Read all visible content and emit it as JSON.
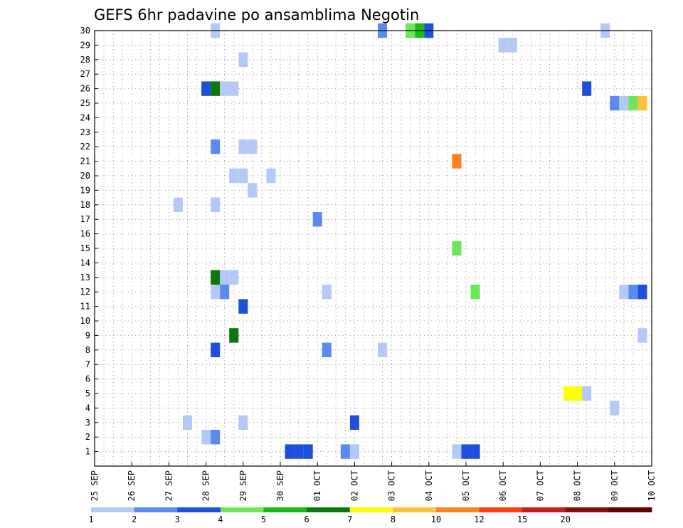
{
  "chart_data": {
    "type": "heatmap",
    "title": "GEFS 6hr padavine po ansamblima Negotin",
    "xlabel": "",
    "ylabel": "",
    "x_ticks": [
      "25 SEP",
      "26 SEP",
      "27 SEP",
      "28 SEP",
      "29 SEP",
      "30 SEP",
      "01 OCT",
      "02 OCT",
      "03 OCT",
      "04 OCT",
      "05 OCT",
      "06 OCT",
      "07 OCT",
      "08 OCT",
      "09 OCT",
      "10 OCT"
    ],
    "x_range_days": [
      0,
      15
    ],
    "y_ticks": [
      1,
      2,
      3,
      4,
      5,
      6,
      7,
      8,
      9,
      10,
      11,
      12,
      13,
      14,
      15,
      16,
      17,
      18,
      19,
      20,
      21,
      22,
      23,
      24,
      25,
      26,
      27,
      28,
      29,
      30
    ],
    "y_range": [
      0,
      30
    ],
    "grid": true,
    "colorbar": {
      "labels": [
        "1",
        "2",
        "3",
        "4",
        "5",
        "6",
        "7",
        "8",
        "10",
        "12",
        "15",
        "20"
      ],
      "colors": [
        "#b4c8f8",
        "#5a8af0",
        "#1e50dc",
        "#6ee65a",
        "#14be14",
        "#0a780a",
        "#ffff00",
        "#ffc03c",
        "#ff7f1e",
        "#ff3c14",
        "#c81e1e",
        "#8b0d0d",
        "#640000"
      ]
    },
    "cells_note": "t = valid time in days from 25 SEP 00Z (6-hour steps), m = ensemble member, v = 6hr precipitation (mm)",
    "cells": [
      {
        "t": 3.25,
        "m": 30,
        "v": 1.5
      },
      {
        "t": 7.75,
        "m": 30,
        "v": 2.5
      },
      {
        "t": 8.5,
        "m": 30,
        "v": 4.5
      },
      {
        "t": 8.75,
        "m": 30,
        "v": 5.5
      },
      {
        "t": 9.0,
        "m": 30,
        "v": 3.5
      },
      {
        "t": 13.75,
        "m": 30,
        "v": 1.5
      },
      {
        "t": 11.0,
        "m": 29,
        "v": 1.5
      },
      {
        "t": 11.25,
        "m": 29,
        "v": 1.5
      },
      {
        "t": 4.0,
        "m": 28,
        "v": 1.5
      },
      {
        "t": 3.0,
        "m": 26,
        "v": 3.5
      },
      {
        "t": 3.25,
        "m": 26,
        "v": 6.5
      },
      {
        "t": 3.5,
        "m": 26,
        "v": 1.5
      },
      {
        "t": 3.75,
        "m": 26,
        "v": 1.5
      },
      {
        "t": 13.25,
        "m": 26,
        "v": 3.5
      },
      {
        "t": 14.0,
        "m": 25,
        "v": 2.5
      },
      {
        "t": 14.25,
        "m": 25,
        "v": 1.5
      },
      {
        "t": 14.5,
        "m": 25,
        "v": 4.5
      },
      {
        "t": 14.75,
        "m": 25,
        "v": 8.5
      },
      {
        "t": 3.25,
        "m": 22,
        "v": 2.5
      },
      {
        "t": 4.0,
        "m": 22,
        "v": 1.5
      },
      {
        "t": 4.25,
        "m": 22,
        "v": 1.5
      },
      {
        "t": 9.75,
        "m": 21,
        "v": 11
      },
      {
        "t": 3.75,
        "m": 20,
        "v": 1.5
      },
      {
        "t": 4.0,
        "m": 20,
        "v": 1.5
      },
      {
        "t": 4.75,
        "m": 20,
        "v": 1.5
      },
      {
        "t": 4.25,
        "m": 19,
        "v": 1.5
      },
      {
        "t": 2.25,
        "m": 18,
        "v": 1.5
      },
      {
        "t": 3.25,
        "m": 18,
        "v": 1.5
      },
      {
        "t": 6.0,
        "m": 17,
        "v": 2.5
      },
      {
        "t": 9.75,
        "m": 15,
        "v": 4.5
      },
      {
        "t": 3.25,
        "m": 13,
        "v": 6.5
      },
      {
        "t": 3.5,
        "m": 13,
        "v": 1.5
      },
      {
        "t": 3.75,
        "m": 13,
        "v": 1.5
      },
      {
        "t": 3.25,
        "m": 12,
        "v": 1.5
      },
      {
        "t": 3.5,
        "m": 12,
        "v": 2.5
      },
      {
        "t": 6.25,
        "m": 12,
        "v": 1.5
      },
      {
        "t": 10.25,
        "m": 12,
        "v": 4.5
      },
      {
        "t": 14.25,
        "m": 12,
        "v": 1.5
      },
      {
        "t": 14.5,
        "m": 12,
        "v": 2.5
      },
      {
        "t": 14.75,
        "m": 12,
        "v": 3.5
      },
      {
        "t": 4.0,
        "m": 11,
        "v": 3.5
      },
      {
        "t": 3.75,
        "m": 9,
        "v": 6.5
      },
      {
        "t": 3.25,
        "m": 8,
        "v": 3.5
      },
      {
        "t": 6.25,
        "m": 8,
        "v": 2.5
      },
      {
        "t": 7.75,
        "m": 8,
        "v": 1.5
      },
      {
        "t": 14.75,
        "m": 9,
        "v": 1.5
      },
      {
        "t": 12.75,
        "m": 5,
        "v": 7.5
      },
      {
        "t": 13.0,
        "m": 5,
        "v": 7.5
      },
      {
        "t": 13.25,
        "m": 5,
        "v": 1.5
      },
      {
        "t": 14.0,
        "m": 4,
        "v": 1.5
      },
      {
        "t": 2.5,
        "m": 3,
        "v": 1.5
      },
      {
        "t": 4.0,
        "m": 3,
        "v": 1.5
      },
      {
        "t": 7.0,
        "m": 3,
        "v": 3.5
      },
      {
        "t": 3.0,
        "m": 2,
        "v": 1.5
      },
      {
        "t": 3.25,
        "m": 2,
        "v": 2.5
      },
      {
        "t": 5.25,
        "m": 1,
        "v": 3.5
      },
      {
        "t": 5.5,
        "m": 1,
        "v": 3.5
      },
      {
        "t": 5.75,
        "m": 1,
        "v": 3.5
      },
      {
        "t": 6.75,
        "m": 1,
        "v": 2.5
      },
      {
        "t": 7.0,
        "m": 1,
        "v": 1.5
      },
      {
        "t": 9.75,
        "m": 1,
        "v": 1.5
      },
      {
        "t": 10.0,
        "m": 1,
        "v": 3.5
      },
      {
        "t": 10.25,
        "m": 1,
        "v": 3.5
      }
    ]
  }
}
